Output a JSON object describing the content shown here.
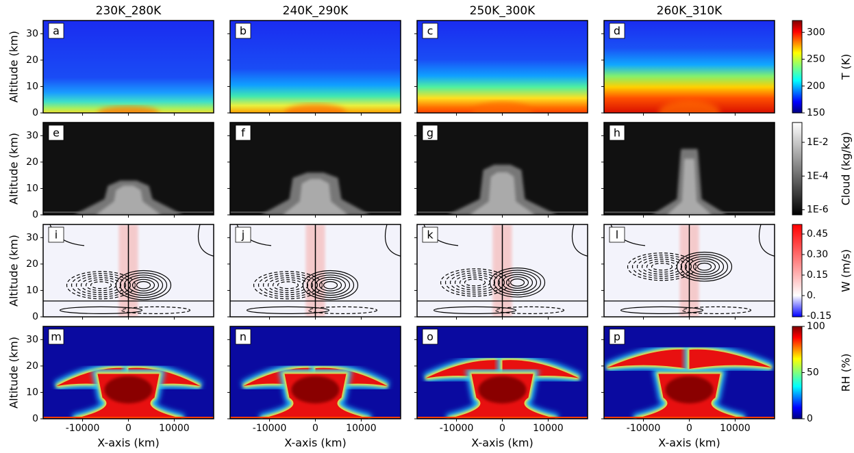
{
  "column_titles": [
    "230K_280K",
    "240K_290K",
    "250K_300K",
    "260K_310K"
  ],
  "axes": {
    "xlabel": "X-axis (km)",
    "ylabel": "Altitude (km)",
    "xlim": [
      -18600,
      18600
    ],
    "xticks": [
      -10000,
      0,
      10000
    ],
    "ylim": [
      0,
      35
    ],
    "yticks": [
      0,
      10,
      20,
      30
    ]
  },
  "chart_data": [
    {
      "type": "heatmap",
      "field": "temperature",
      "panels": [
        "a",
        "b",
        "c",
        "d"
      ],
      "colorbar": {
        "label": "T (K)",
        "colormap": "jet",
        "lim": [
          150,
          322
        ],
        "ticks": [
          150,
          200,
          250,
          300
        ]
      }
    },
    {
      "type": "heatmap",
      "field": "cloud",
      "panels": [
        "e",
        "f",
        "g",
        "h"
      ],
      "colorbar": {
        "label": "Cloud (kg/kg)",
        "colormap": "gray",
        "scale": "log",
        "lim": [
          5e-07,
          0.15
        ],
        "ticks": [
          {
            "value": 1e-06,
            "label": "1E-6"
          },
          {
            "value": 0.0001,
            "label": "1E-4"
          },
          {
            "value": 0.01,
            "label": "1E-2"
          }
        ]
      }
    },
    {
      "type": "heatmap",
      "field": "vertical-velocity",
      "panels": [
        "i",
        "j",
        "k",
        "l"
      ],
      "colorbar": {
        "label": "W (m/s)",
        "colormap": "bwr",
        "lim": [
          -0.155,
          0.52
        ],
        "ticks": [
          -0.15,
          {
            "value": 0,
            "label": "0."
          },
          0.15,
          {
            "value": 0.3,
            "label": "0.30"
          },
          0.45
        ]
      }
    },
    {
      "type": "heatmap",
      "field": "relative-humidity",
      "panels": [
        "m",
        "n",
        "o",
        "p"
      ],
      "colorbar": {
        "label": "RH (%)",
        "colormap": "jet",
        "lim": [
          0,
          100
        ],
        "ticks": [
          0,
          50,
          100
        ]
      }
    }
  ]
}
